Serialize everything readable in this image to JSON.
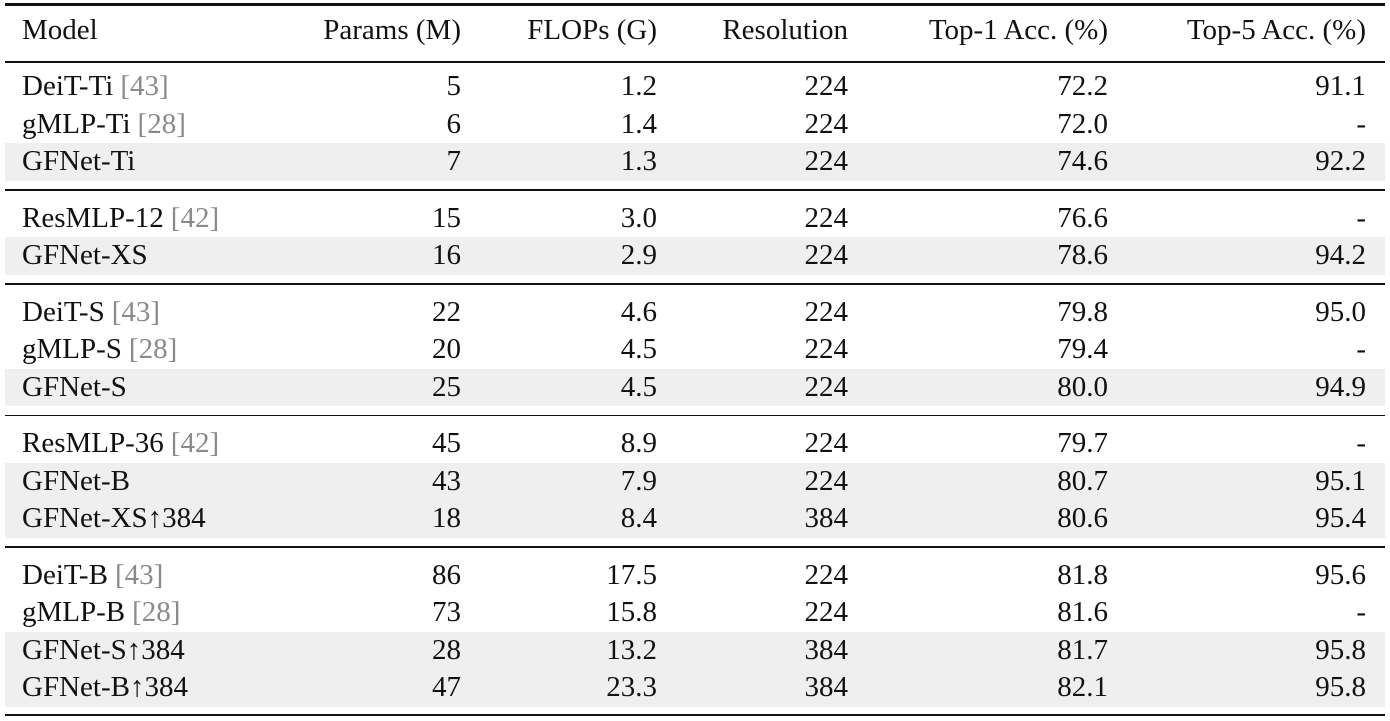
{
  "table": {
    "header": [
      "Model",
      "Params (M)",
      "FLOPs (G)",
      "Resolution",
      "Top-1 Acc. (%)",
      "Top-5 Acc. (%)"
    ],
    "groups": [
      {
        "rows": [
          {
            "model": "DeiT-Ti",
            "cite": "[43]",
            "params": "5",
            "flops": "1.2",
            "resolution": "224",
            "top1": "72.2",
            "top5": "91.1"
          },
          {
            "model": "gMLP-Ti",
            "cite": "[28]",
            "params": "6",
            "flops": "1.4",
            "resolution": "224",
            "top1": "72.0",
            "top5": "-"
          },
          {
            "model": "GFNet-Ti",
            "params": "7",
            "flops": "1.3",
            "resolution": "224",
            "top1": "74.6",
            "top5": "92.2",
            "shaded": true
          }
        ]
      },
      {
        "rows": [
          {
            "model": "ResMLP-12",
            "cite": "[42]",
            "params": "15",
            "flops": "3.0",
            "resolution": "224",
            "top1": "76.6",
            "top5": "-"
          },
          {
            "model": "GFNet-XS",
            "params": "16",
            "flops": "2.9",
            "resolution": "224",
            "top1": "78.6",
            "top5": "94.2",
            "shaded": true
          }
        ]
      },
      {
        "rows": [
          {
            "model": "DeiT-S",
            "cite": "[43]",
            "params": "22",
            "flops": "4.6",
            "resolution": "224",
            "top1": "79.8",
            "top5": "95.0"
          },
          {
            "model": "gMLP-S",
            "cite": "[28]",
            "params": "20",
            "flops": "4.5",
            "resolution": "224",
            "top1": "79.4",
            "top5": "-"
          },
          {
            "model": "GFNet-S",
            "params": "25",
            "flops": "4.5",
            "resolution": "224",
            "top1": "80.0",
            "top5": "94.9",
            "shaded": true
          }
        ]
      },
      {
        "rows": [
          {
            "model": "ResMLP-36",
            "cite": "[42]",
            "params": "45",
            "flops": "8.9",
            "resolution": "224",
            "top1": "79.7",
            "top5": "-"
          },
          {
            "model": "GFNet-B",
            "params": "43",
            "flops": "7.9",
            "resolution": "224",
            "top1": "80.7",
            "top5": "95.1",
            "shaded": true
          },
          {
            "model": "GFNet-XS↑384",
            "params": "18",
            "flops": "8.4",
            "resolution": "384",
            "top1": "80.6",
            "top5": "95.4",
            "shaded": true
          }
        ]
      },
      {
        "rows": [
          {
            "model": "DeiT-B",
            "cite": "[43]",
            "params": "86",
            "flops": "17.5",
            "resolution": "224",
            "top1": "81.8",
            "top5": "95.6"
          },
          {
            "model": "gMLP-B",
            "cite": "[28]",
            "params": "73",
            "flops": "15.8",
            "resolution": "224",
            "top1": "81.6",
            "top5": "-"
          },
          {
            "model": "GFNet-S↑384",
            "params": "28",
            "flops": "13.2",
            "resolution": "384",
            "top1": "81.7",
            "top5": "95.8",
            "shaded": true
          },
          {
            "model": "GFNet-B↑384",
            "params": "47",
            "flops": "23.3",
            "resolution": "384",
            "top1": "82.1",
            "top5": "95.8",
            "shaded": true
          }
        ]
      }
    ]
  }
}
